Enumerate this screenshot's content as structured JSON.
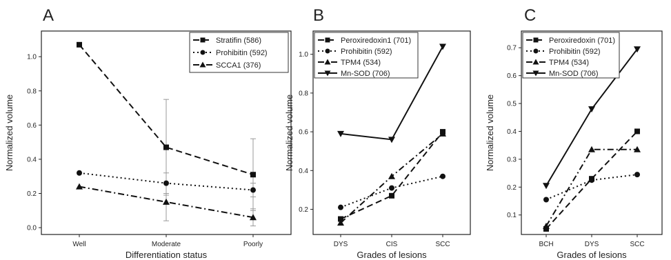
{
  "chart_data": [
    {
      "panel_label": "A",
      "type": "line",
      "categories": [
        "Well",
        "Moderate",
        "Poorly"
      ],
      "xlabel": "Differentiation status",
      "ylabel": "Normalized volume",
      "ylim": [
        -0.04,
        1.15
      ],
      "yticks": [
        "0.0",
        "0.2",
        "0.4",
        "0.6",
        "0.8",
        "1.0"
      ],
      "legend_position": "top-right",
      "series": [
        {
          "name": "Stratifin (586)",
          "values": [
            1.07,
            0.47,
            0.31
          ],
          "marker": "square",
          "dash": "dashed",
          "error": [
            0,
            0.28,
            0.21
          ]
        },
        {
          "name": "Prohibitin (592)",
          "values": [
            0.32,
            0.26,
            0.22
          ],
          "marker": "circle",
          "dash": "dotted",
          "error": [
            0,
            0.06,
            0.04
          ]
        },
        {
          "name": "SCCA1 (376)",
          "values": [
            0.24,
            0.15,
            0.06
          ],
          "marker": "triangle-up",
          "dash": "dashdot",
          "error": [
            0,
            0.11,
            0.05
          ]
        }
      ]
    },
    {
      "panel_label": "B",
      "type": "line",
      "categories": [
        "DYS",
        "CIS",
        "SCC"
      ],
      "xlabel": "Grades of lesions",
      "ylabel": "Normalized volume",
      "ylim": [
        0.07,
        1.12
      ],
      "yticks": [
        "0.2",
        "0.4",
        "0.6",
        "0.8",
        "1.0"
      ],
      "legend_position": "top-left",
      "series": [
        {
          "name": "Peroxiredoxin1 (701)",
          "values": [
            0.15,
            0.27,
            0.6
          ],
          "marker": "square",
          "dash": "dashed"
        },
        {
          "name": "Prohibitin (592)",
          "values": [
            0.21,
            0.31,
            0.37
          ],
          "marker": "circle",
          "dash": "dotted"
        },
        {
          "name": "TPM4 (534)",
          "values": [
            0.13,
            0.37,
            0.59
          ],
          "marker": "triangle-up",
          "dash": "dashdot"
        },
        {
          "name": "Mn-SOD (706)",
          "values": [
            0.59,
            0.56,
            1.04
          ],
          "marker": "triangle-down",
          "dash": "solid"
        }
      ]
    },
    {
      "panel_label": "C",
      "type": "line",
      "categories": [
        "BCH",
        "DYS",
        "SCC"
      ],
      "xlabel": "Grades of lesions",
      "ylabel": "Normalized volume",
      "ylim": [
        0.03,
        0.76
      ],
      "yticks": [
        "0.1",
        "0.2",
        "0.3",
        "0.4",
        "0.5",
        "0.6",
        "0.7"
      ],
      "legend_position": "top-left",
      "series": [
        {
          "name": "Peroxiredoxin (701)",
          "values": [
            0.05,
            0.23,
            0.4
          ],
          "marker": "square",
          "dash": "dashed"
        },
        {
          "name": "Prohibitin (592)",
          "values": [
            0.155,
            0.225,
            0.245
          ],
          "marker": "circle",
          "dash": "dotted"
        },
        {
          "name": "TPM4 (534)",
          "values": [
            0.06,
            0.335,
            0.335
          ],
          "marker": "triangle-up",
          "dash": "dashdot"
        },
        {
          "name": "Mn-SOD (706)",
          "values": [
            0.205,
            0.48,
            0.695
          ],
          "marker": "triangle-down",
          "dash": "solid"
        }
      ]
    }
  ]
}
